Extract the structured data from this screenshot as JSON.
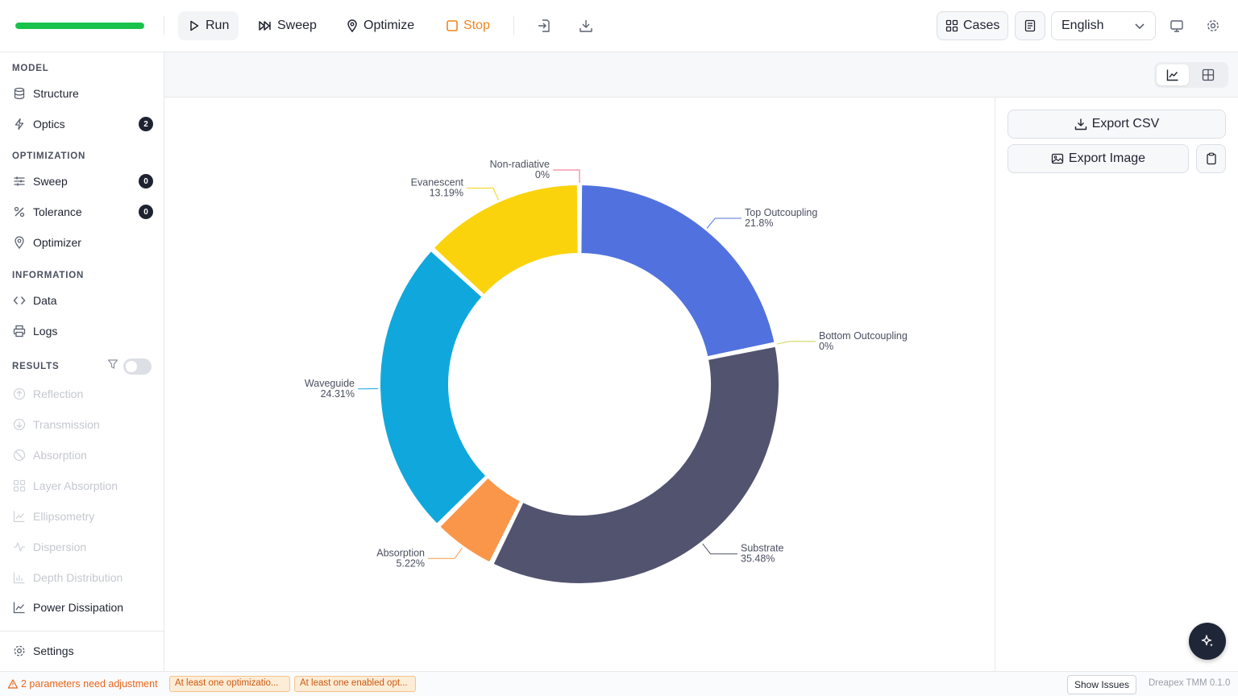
{
  "toolbar": {
    "progress_fraction": 1.0,
    "run_label": "Run",
    "sweep_label": "Sweep",
    "optimize_label": "Optimize",
    "stop_label": "Stop",
    "cases_label": "Cases",
    "language_value": "English"
  },
  "sidebar": {
    "model_heading": "MODEL",
    "structure_label": "Structure",
    "optics_label": "Optics",
    "optics_badge": "2",
    "optimization_heading": "OPTIMIZATION",
    "sweep_label": "Sweep",
    "sweep_badge": "0",
    "tolerance_label": "Tolerance",
    "tolerance_badge": "0",
    "optimizer_label": "Optimizer",
    "information_heading": "INFORMATION",
    "data_label": "Data",
    "logs_label": "Logs",
    "results_heading": "RESULTS",
    "results_items": [
      "Reflection",
      "Transmission",
      "Absorption",
      "Layer Absorption",
      "Ellipsometry",
      "Dispersion",
      "Depth Distribution"
    ],
    "power_dissipation_label": "Power Dissipation",
    "settings_label": "Settings"
  },
  "panel": {
    "export_csv_label": "Export CSV",
    "export_image_label": "Export Image"
  },
  "chart_data": {
    "type": "pie",
    "donut": true,
    "series": [
      {
        "name": "Top Outcoupling",
        "value": 21.8,
        "label": "21.8%",
        "color": "#5172de"
      },
      {
        "name": "Bottom Outcoupling",
        "value": 0,
        "label": "0%",
        "color": "#c8d34b"
      },
      {
        "name": "Substrate",
        "value": 35.48,
        "label": "35.48%",
        "color": "#51536f"
      },
      {
        "name": "Absorption",
        "value": 5.22,
        "label": "5.22%",
        "color": "#fa964a"
      },
      {
        "name": "Waveguide",
        "value": 24.31,
        "label": "24.31%",
        "color": "#10a8dc"
      },
      {
        "name": "Evanescent",
        "value": 13.19,
        "label": "13.19%",
        "color": "#fad30d"
      },
      {
        "name": "Non-radiative",
        "value": 0,
        "label": "0%",
        "color": "#ee6b86"
      }
    ]
  },
  "status": {
    "warning_text": "2 parameters need adjustment",
    "chip1": "At least one optimizatio...",
    "chip2": "At least one enabled opt...",
    "show_issues_label": "Show Issues",
    "version": "Dreapex TMM 0.1.0"
  }
}
